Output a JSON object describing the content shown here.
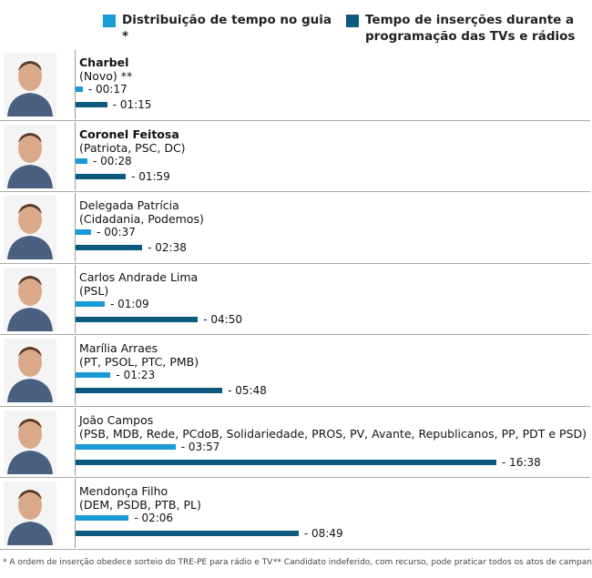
{
  "chart_data": {
    "type": "bar",
    "categories": [
      "Charbel",
      "Coronel Feitosa",
      "Delegada Patrícia",
      "Carlos Andrade Lima",
      "Marília Arraes",
      "João Campos",
      "Mendonça Filho"
    ],
    "parties": [
      "(Novo) **",
      "(Patriota, PSC, DC)",
      "(Cidadania, Podemos)",
      "(PSL)",
      "(PT, PSOL, PTC, PMB)",
      "(PSB, MDB, Rede, PCdoB, Solidariedade, PROS, PV, Avante, Republicanos, PP, PDT e PSD)",
      "(DEM, PSDB, PTB, PL)"
    ],
    "series": [
      {
        "name": "Distribuição de tempo no guia *",
        "color": "#1a9ad6",
        "values": [
          17,
          28,
          37,
          69,
          83,
          237,
          126
        ],
        "value_labels": [
          "- 00:17",
          "- 00:28",
          "- 00:37",
          "- 01:09",
          "- 01:23",
          "- 03:57",
          "- 02:06"
        ]
      },
      {
        "name": "Tempo de inserções durante a programação das TVs e rádios",
        "color": "#0d5a7f",
        "values": [
          75,
          119,
          158,
          290,
          348,
          998,
          529
        ],
        "value_labels": [
          "- 01:15",
          "- 01:59",
          "- 02:38",
          "- 04:50",
          "- 05:48",
          "- 16:38",
          "- 08:49"
        ]
      }
    ],
    "footnotes": [
      "* A ordem de inserção obedece sorteio do TRE-PE para rádio e TV",
      "** Candidato indeferido, com recurso, pode praticar todos os atos de campanha"
    ]
  }
}
